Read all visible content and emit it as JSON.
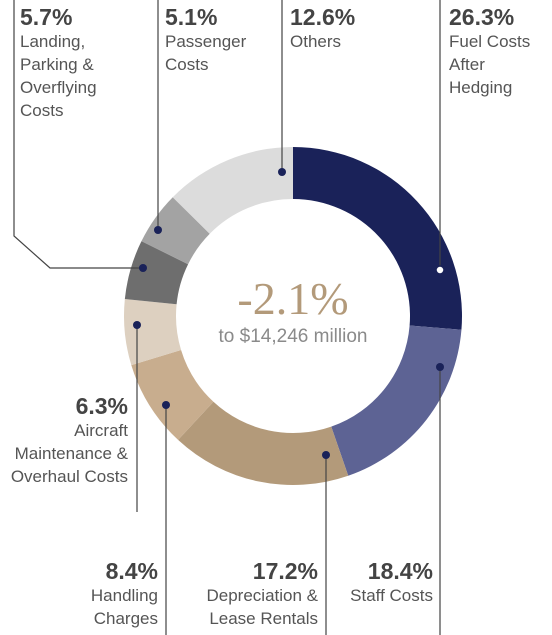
{
  "chart_data": {
    "type": "donut",
    "center_label": "-2.1%",
    "center_sublabel": "to $14,246 million",
    "categories": [
      "Fuel Costs After Hedging",
      "Staff Costs",
      "Depreciation & Lease Rentals",
      "Handling Charges",
      "Aircraft Maintenance & Overhaul Costs",
      "Landing, Parking & Overflying Costs",
      "Passenger Costs",
      "Others"
    ],
    "values": [
      26.3,
      18.4,
      17.2,
      8.4,
      6.3,
      5.7,
      5.1,
      12.6
    ],
    "value_labels": [
      "26.3%",
      "18.4%",
      "17.2%",
      "8.4%",
      "6.3%",
      "5.7%",
      "5.1%",
      "12.6%"
    ],
    "colors": [
      "#1a2259",
      "#5d6394",
      "#b39a7a",
      "#c8ad8e",
      "#ddd0c0",
      "#6e6e6e",
      "#a3a3a3",
      "#dcdcdc"
    ]
  }
}
